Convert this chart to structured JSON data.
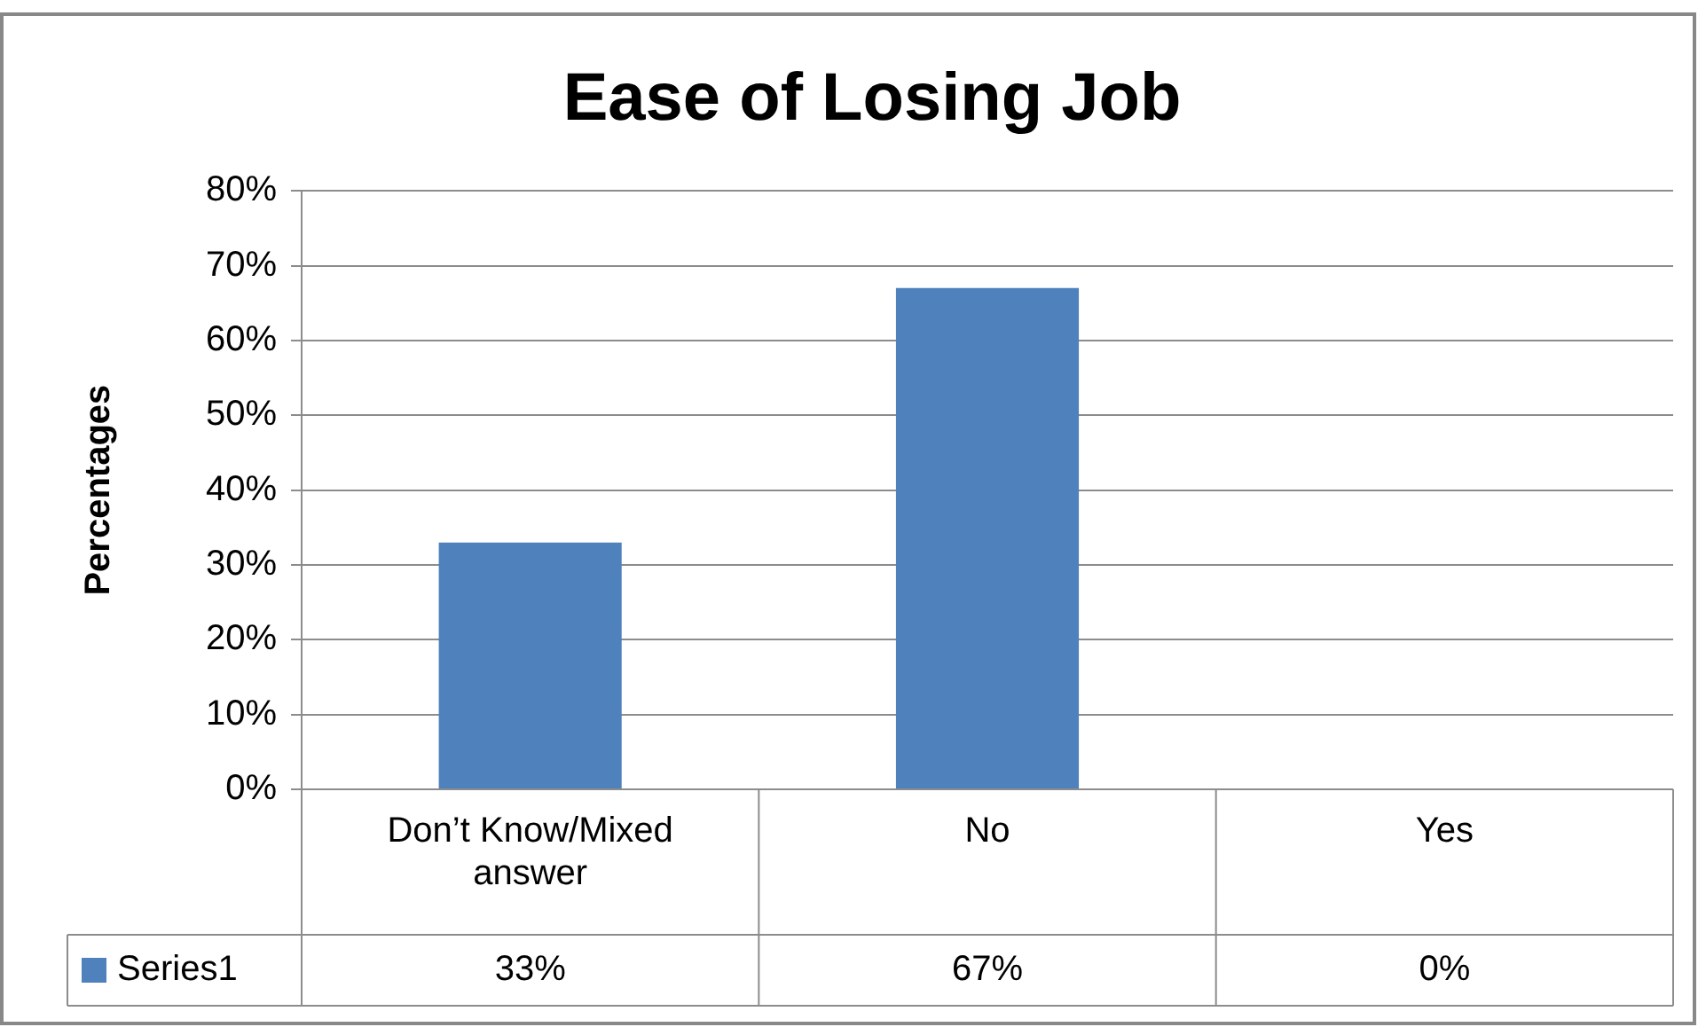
{
  "chart_data": {
    "type": "bar",
    "title": "Ease of Losing Job",
    "ylabel": "Percentages",
    "categories": [
      "Don’t Know/Mixed answer",
      "No",
      "Yes"
    ],
    "series": [
      {
        "name": "Series1",
        "color": "#4f81bd",
        "values": [
          33,
          67,
          0
        ],
        "value_labels": [
          "33%",
          "67%",
          "0%"
        ]
      }
    ],
    "ylim": [
      0,
      80
    ],
    "yticks": [
      {
        "value": 0,
        "label": "0%"
      },
      {
        "value": 10,
        "label": "10%"
      },
      {
        "value": 20,
        "label": "20%"
      },
      {
        "value": 30,
        "label": "30%"
      },
      {
        "value": 40,
        "label": "40%"
      },
      {
        "value": 50,
        "label": "50%"
      },
      {
        "value": 60,
        "label": "60%"
      },
      {
        "value": 70,
        "label": "70%"
      },
      {
        "value": 80,
        "label": "80%"
      }
    ],
    "grid": "y",
    "legend": "bottom"
  }
}
